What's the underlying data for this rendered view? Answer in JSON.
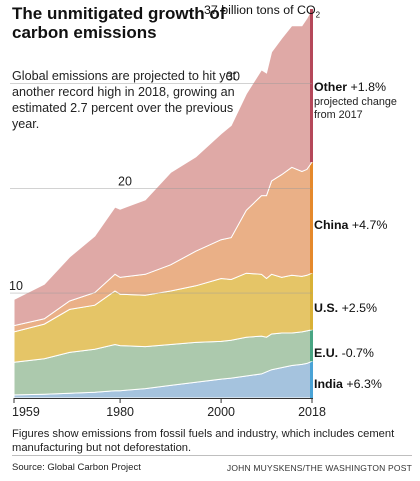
{
  "header": {
    "title": "The unmitigated growth of carbon emissions",
    "subtitle": "Global emissions are projected to hit yet another record high in 2018, growing an estimated 2.7 percent over the previous year."
  },
  "annotations": {
    "total_prefix": "37 billion tons of CO",
    "total_subscript": "2"
  },
  "footer": {
    "note": "Figures show emissions from fossil fuels and industry, which includes cement manufacturing but not deforestation.",
    "source": "Source: Global Carbon Project",
    "credit": "JOHN MUYSKENS/THE WASHINGTON POST"
  },
  "series_labels": [
    {
      "name": "Other",
      "change": "+1.8%",
      "note": "projected change from 2017"
    },
    {
      "name": "China",
      "change": "+4.7%"
    },
    {
      "name": "U.S.",
      "change": "+2.5%"
    },
    {
      "name": "E.U.",
      "change": "-0.7%"
    },
    {
      "name": "India",
      "change": "+6.3%"
    }
  ],
  "colors": {
    "india": "#a5c3de",
    "india_edge": "#4aa3d6",
    "eu": "#acc9ad",
    "eu_edge": "#49a583",
    "us": "#e5c567",
    "us_edge": "#d9b136",
    "china": "#eab087",
    "china_edge": "#e5892b",
    "other": "#dfa9a6",
    "other_edge": "#b5485a",
    "gridline": "#9a9a9a"
  },
  "chart_data": {
    "type": "area",
    "stacked": true,
    "title": "The unmitigated growth of carbon emissions",
    "x": [
      1959,
      1965,
      1970,
      1975,
      1979,
      1980,
      1985,
      1990,
      1995,
      2000,
      2002,
      2005,
      2008,
      2009,
      2010,
      2012,
      2014,
      2016,
      2017,
      2018
    ],
    "series": [
      {
        "name": "India",
        "values": [
          0.3,
          0.35,
          0.45,
          0.55,
          0.7,
          0.7,
          0.9,
          1.2,
          1.5,
          1.8,
          1.9,
          2.1,
          2.3,
          2.5,
          2.7,
          2.9,
          3.1,
          3.2,
          3.3,
          3.5
        ]
      },
      {
        "name": "E.U.",
        "values": [
          3.1,
          3.4,
          3.9,
          4.1,
          4.4,
          4.3,
          4.0,
          3.9,
          3.8,
          3.6,
          3.6,
          3.7,
          3.6,
          3.3,
          3.4,
          3.3,
          3.1,
          3.1,
          3.1,
          3.0
        ]
      },
      {
        "name": "U.S.",
        "values": [
          2.9,
          3.3,
          4.1,
          4.2,
          5.1,
          4.9,
          4.9,
          5.1,
          5.4,
          6.0,
          5.8,
          6.1,
          5.9,
          5.6,
          5.7,
          5.3,
          5.5,
          5.3,
          5.3,
          5.4
        ]
      },
      {
        "name": "China",
        "values": [
          0.6,
          0.5,
          0.8,
          1.2,
          1.6,
          1.6,
          2.0,
          2.5,
          3.3,
          3.7,
          4.0,
          6.0,
          7.5,
          7.9,
          8.9,
          9.8,
          10.3,
          10.0,
          10.1,
          10.6
        ]
      },
      {
        "name": "Other",
        "values": [
          2.5,
          3.3,
          4.2,
          5.4,
          6.4,
          6.5,
          7.1,
          8.8,
          9.0,
          10.1,
          10.7,
          11.1,
          12.0,
          11.7,
          12.3,
          13.0,
          13.5,
          13.9,
          14.4,
          14.6
        ]
      }
    ],
    "xlabel": "",
    "ylabel": "",
    "xlim": [
      1959,
      2018
    ],
    "ylim": [
      0,
      37
    ],
    "xticks": [
      1959,
      1980,
      2000,
      2018
    ],
    "yticks": [
      10,
      20,
      30
    ],
    "grid": true
  }
}
